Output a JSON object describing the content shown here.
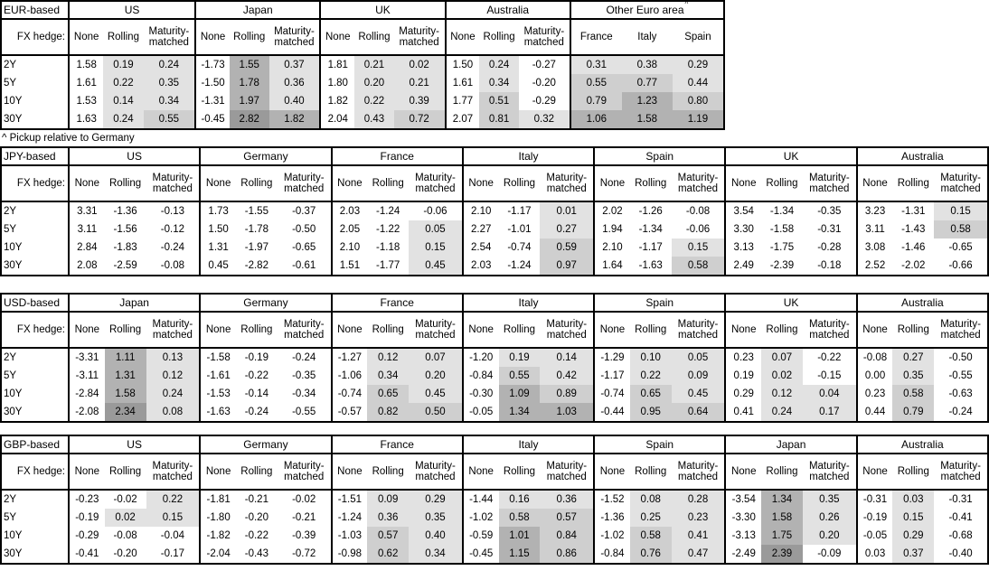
{
  "footnote": "^ Pickup relative to Germany",
  "fx_hedge_label": "FX hedge:",
  "tenors": [
    "2Y",
    "5Y",
    "10Y",
    "30Y"
  ],
  "hedge_columns": [
    "None",
    "Rolling",
    "Maturity-matched"
  ],
  "shading": {
    "meaning": "gray intensity scales with positive hedged value",
    "light": "#e2e2e2",
    "medium": "#cfcfcf",
    "dark": "#b2b2b2",
    "darkest": "#9a9a9a",
    "thresholds": [
      0,
      0.5,
      1.0,
      2.0
    ]
  },
  "tables": [
    {
      "base": "EUR-based",
      "groups": [
        {
          "name": "US",
          "columns": [
            "None",
            "Rolling",
            "Maturity-matched"
          ],
          "shade_columns": [
            1,
            2
          ],
          "rows": [
            [
              "1.58",
              "0.19",
              "0.24"
            ],
            [
              "1.61",
              "0.22",
              "0.35"
            ],
            [
              "1.53",
              "0.14",
              "0.34"
            ],
            [
              "1.63",
              "0.24",
              "0.55"
            ]
          ]
        },
        {
          "name": "Japan",
          "columns": [
            "None",
            "Rolling",
            "Maturity-matched"
          ],
          "shade_columns": [
            1,
            2
          ],
          "rows": [
            [
              "-1.73",
              "1.55",
              "0.37"
            ],
            [
              "-1.50",
              "1.78",
              "0.36"
            ],
            [
              "-1.31",
              "1.97",
              "0.40"
            ],
            [
              "-0.45",
              "2.82",
              "1.82"
            ]
          ]
        },
        {
          "name": "UK",
          "columns": [
            "None",
            "Rolling",
            "Maturity-matched"
          ],
          "shade_columns": [
            1,
            2
          ],
          "rows": [
            [
              "1.81",
              "0.21",
              "0.02"
            ],
            [
              "1.80",
              "0.20",
              "0.21"
            ],
            [
              "1.82",
              "0.22",
              "0.39"
            ],
            [
              "2.04",
              "0.43",
              "0.72"
            ]
          ]
        },
        {
          "name": "Australia",
          "columns": [
            "None",
            "Rolling",
            "Maturity-matched"
          ],
          "shade_columns": [
            1,
            2
          ],
          "rows": [
            [
              "1.50",
              "0.24",
              "-0.27"
            ],
            [
              "1.61",
              "0.34",
              "-0.20"
            ],
            [
              "1.77",
              "0.51",
              "-0.29"
            ],
            [
              "2.07",
              "0.81",
              "0.32"
            ]
          ]
        },
        {
          "name": "Other Euro area",
          "superscript": "^",
          "columns": [
            "France",
            "Italy",
            "Spain"
          ],
          "columns_equal": true,
          "shade_columns": [
            0,
            1,
            2
          ],
          "rows": [
            [
              "0.31",
              "0.38",
              "0.29"
            ],
            [
              "0.55",
              "0.77",
              "0.44"
            ],
            [
              "0.79",
              "1.23",
              "0.80"
            ],
            [
              "1.06",
              "1.58",
              "1.19"
            ]
          ]
        }
      ]
    },
    {
      "base": "JPY-based",
      "groups": [
        {
          "name": "US",
          "columns": [
            "None",
            "Rolling",
            "Maturity-matched"
          ],
          "shade_columns": [
            1,
            2
          ],
          "rows": [
            [
              "3.31",
              "-1.36",
              "-0.13"
            ],
            [
              "3.11",
              "-1.56",
              "-0.12"
            ],
            [
              "2.84",
              "-1.83",
              "-0.24"
            ],
            [
              "2.08",
              "-2.59",
              "-0.08"
            ]
          ]
        },
        {
          "name": "Germany",
          "columns": [
            "None",
            "Rolling",
            "Maturity-matched"
          ],
          "shade_columns": [
            1,
            2
          ],
          "rows": [
            [
              "1.73",
              "-1.55",
              "-0.37"
            ],
            [
              "1.50",
              "-1.78",
              "-0.50"
            ],
            [
              "1.31",
              "-1.97",
              "-0.65"
            ],
            [
              "0.45",
              "-2.82",
              "-0.61"
            ]
          ]
        },
        {
          "name": "France",
          "columns": [
            "None",
            "Rolling",
            "Maturity-matched"
          ],
          "shade_columns": [
            1,
            2
          ],
          "rows": [
            [
              "2.03",
              "-1.24",
              "-0.06"
            ],
            [
              "2.05",
              "-1.22",
              "0.05"
            ],
            [
              "2.10",
              "-1.18",
              "0.15"
            ],
            [
              "1.51",
              "-1.77",
              "0.45"
            ]
          ]
        },
        {
          "name": "Italy",
          "columns": [
            "None",
            "Rolling",
            "Maturity-matched"
          ],
          "shade_columns": [
            1,
            2
          ],
          "rows": [
            [
              "2.10",
              "-1.17",
              "0.01"
            ],
            [
              "2.27",
              "-1.01",
              "0.27"
            ],
            [
              "2.54",
              "-0.74",
              "0.59"
            ],
            [
              "2.03",
              "-1.24",
              "0.97"
            ]
          ]
        },
        {
          "name": "Spain",
          "columns": [
            "None",
            "Rolling",
            "Maturity-matched"
          ],
          "shade_columns": [
            1,
            2
          ],
          "rows": [
            [
              "2.02",
              "-1.26",
              "-0.08"
            ],
            [
              "1.94",
              "-1.34",
              "-0.06"
            ],
            [
              "2.10",
              "-1.17",
              "0.15"
            ],
            [
              "1.64",
              "-1.63",
              "0.58"
            ]
          ]
        },
        {
          "name": "UK",
          "columns": [
            "None",
            "Rolling",
            "Maturity-matched"
          ],
          "shade_columns": [
            1,
            2
          ],
          "rows": [
            [
              "3.54",
              "-1.34",
              "-0.35"
            ],
            [
              "3.30",
              "-1.58",
              "-0.31"
            ],
            [
              "3.13",
              "-1.75",
              "-0.28"
            ],
            [
              "2.49",
              "-2.39",
              "-0.18"
            ]
          ]
        },
        {
          "name": "Australia",
          "columns": [
            "None",
            "Rolling",
            "Maturity-matched"
          ],
          "shade_columns": [
            1,
            2
          ],
          "rows": [
            [
              "3.23",
              "-1.31",
              "0.15"
            ],
            [
              "3.11",
              "-1.43",
              "0.58"
            ],
            [
              "3.08",
              "-1.46",
              "-0.65"
            ],
            [
              "2.52",
              "-2.02",
              "-0.66"
            ]
          ]
        }
      ]
    },
    {
      "base": "USD-based",
      "groups": [
        {
          "name": "Japan",
          "columns": [
            "None",
            "Rolling",
            "Maturity-matched"
          ],
          "shade_columns": [
            1,
            2
          ],
          "rows": [
            [
              "-3.31",
              "1.11",
              "0.13"
            ],
            [
              "-3.11",
              "1.31",
              "0.12"
            ],
            [
              "-2.84",
              "1.58",
              "0.24"
            ],
            [
              "-2.08",
              "2.34",
              "0.08"
            ]
          ]
        },
        {
          "name": "Germany",
          "columns": [
            "None",
            "Rolling",
            "Maturity-matched"
          ],
          "shade_columns": [
            1,
            2
          ],
          "rows": [
            [
              "-1.58",
              "-0.19",
              "-0.24"
            ],
            [
              "-1.61",
              "-0.22",
              "-0.35"
            ],
            [
              "-1.53",
              "-0.14",
              "-0.34"
            ],
            [
              "-1.63",
              "-0.24",
              "-0.55"
            ]
          ]
        },
        {
          "name": "France",
          "columns": [
            "None",
            "Rolling",
            "Maturity-matched"
          ],
          "shade_columns": [
            1,
            2
          ],
          "rows": [
            [
              "-1.27",
              "0.12",
              "0.07"
            ],
            [
              "-1.06",
              "0.34",
              "0.20"
            ],
            [
              "-0.74",
              "0.65",
              "0.45"
            ],
            [
              "-0.57",
              "0.82",
              "0.50"
            ]
          ]
        },
        {
          "name": "Italy",
          "columns": [
            "None",
            "Rolling",
            "Maturity-matched"
          ],
          "shade_columns": [
            1,
            2
          ],
          "rows": [
            [
              "-1.20",
              "0.19",
              "0.14"
            ],
            [
              "-0.84",
              "0.55",
              "0.42"
            ],
            [
              "-0.30",
              "1.09",
              "0.89"
            ],
            [
              "-0.05",
              "1.34",
              "1.03"
            ]
          ]
        },
        {
          "name": "Spain",
          "columns": [
            "None",
            "Rolling",
            "Maturity-matched"
          ],
          "shade_columns": [
            1,
            2
          ],
          "rows": [
            [
              "-1.29",
              "0.10",
              "0.05"
            ],
            [
              "-1.17",
              "0.22",
              "0.09"
            ],
            [
              "-0.74",
              "0.65",
              "0.45"
            ],
            [
              "-0.44",
              "0.95",
              "0.64"
            ]
          ]
        },
        {
          "name": "UK",
          "columns": [
            "None",
            "Rolling",
            "Maturity-matched"
          ],
          "shade_columns": [
            1,
            2
          ],
          "rows": [
            [
              "0.23",
              "0.07",
              "-0.22"
            ],
            [
              "0.19",
              "0.02",
              "-0.15"
            ],
            [
              "0.29",
              "0.12",
              "0.04"
            ],
            [
              "0.41",
              "0.24",
              "0.17"
            ]
          ]
        },
        {
          "name": "Australia",
          "columns": [
            "None",
            "Rolling",
            "Maturity-matched"
          ],
          "shade_columns": [
            1,
            2
          ],
          "rows": [
            [
              "-0.08",
              "0.27",
              "-0.50"
            ],
            [
              "0.00",
              "0.35",
              "-0.55"
            ],
            [
              "0.23",
              "0.58",
              "-0.63"
            ],
            [
              "0.44",
              "0.79",
              "-0.24"
            ]
          ]
        }
      ]
    },
    {
      "base": "GBP-based",
      "groups": [
        {
          "name": "US",
          "columns": [
            "None",
            "Rolling",
            "Maturity-matched"
          ],
          "shade_columns": [
            1,
            2
          ],
          "rows": [
            [
              "-0.23",
              "-0.02",
              "0.22"
            ],
            [
              "-0.19",
              "0.02",
              "0.15"
            ],
            [
              "-0.29",
              "-0.08",
              "-0.04"
            ],
            [
              "-0.41",
              "-0.20",
              "-0.17"
            ]
          ]
        },
        {
          "name": "Germany",
          "columns": [
            "None",
            "Rolling",
            "Maturity-matched"
          ],
          "shade_columns": [
            1,
            2
          ],
          "rows": [
            [
              "-1.81",
              "-0.21",
              "-0.02"
            ],
            [
              "-1.80",
              "-0.20",
              "-0.21"
            ],
            [
              "-1.82",
              "-0.22",
              "-0.39"
            ],
            [
              "-2.04",
              "-0.43",
              "-0.72"
            ]
          ]
        },
        {
          "name": "France",
          "columns": [
            "None",
            "Rolling",
            "Maturity-matched"
          ],
          "shade_columns": [
            1,
            2
          ],
          "rows": [
            [
              "-1.51",
              "0.09",
              "0.29"
            ],
            [
              "-1.24",
              "0.36",
              "0.35"
            ],
            [
              "-1.03",
              "0.57",
              "0.40"
            ],
            [
              "-0.98",
              "0.62",
              "0.34"
            ]
          ]
        },
        {
          "name": "Italy",
          "columns": [
            "None",
            "Rolling",
            "Maturity-matched"
          ],
          "shade_columns": [
            1,
            2
          ],
          "rows": [
            [
              "-1.44",
              "0.16",
              "0.36"
            ],
            [
              "-1.02",
              "0.58",
              "0.57"
            ],
            [
              "-0.59",
              "1.01",
              "0.84"
            ],
            [
              "-0.45",
              "1.15",
              "0.86"
            ]
          ]
        },
        {
          "name": "Spain",
          "columns": [
            "None",
            "Rolling",
            "Maturity-matched"
          ],
          "shade_columns": [
            1,
            2
          ],
          "rows": [
            [
              "-1.52",
              "0.08",
              "0.28"
            ],
            [
              "-1.36",
              "0.25",
              "0.23"
            ],
            [
              "-1.02",
              "0.58",
              "0.41"
            ],
            [
              "-0.84",
              "0.76",
              "0.47"
            ]
          ]
        },
        {
          "name": "Japan",
          "columns": [
            "None",
            "Rolling",
            "Maturity-matched"
          ],
          "shade_columns": [
            1,
            2
          ],
          "rows": [
            [
              "-3.54",
              "1.34",
              "0.35"
            ],
            [
              "-3.30",
              "1.58",
              "0.26"
            ],
            [
              "-3.13",
              "1.75",
              "0.20"
            ],
            [
              "-2.49",
              "2.39",
              "-0.09"
            ]
          ]
        },
        {
          "name": "Australia",
          "columns": [
            "None",
            "Rolling",
            "Maturity-matched"
          ],
          "shade_columns": [
            1,
            2
          ],
          "rows": [
            [
              "-0.31",
              "0.03",
              "-0.31"
            ],
            [
              "-0.19",
              "0.15",
              "-0.41"
            ],
            [
              "-0.05",
              "0.29",
              "-0.68"
            ],
            [
              "0.03",
              "0.37",
              "-0.40"
            ]
          ]
        }
      ]
    }
  ]
}
